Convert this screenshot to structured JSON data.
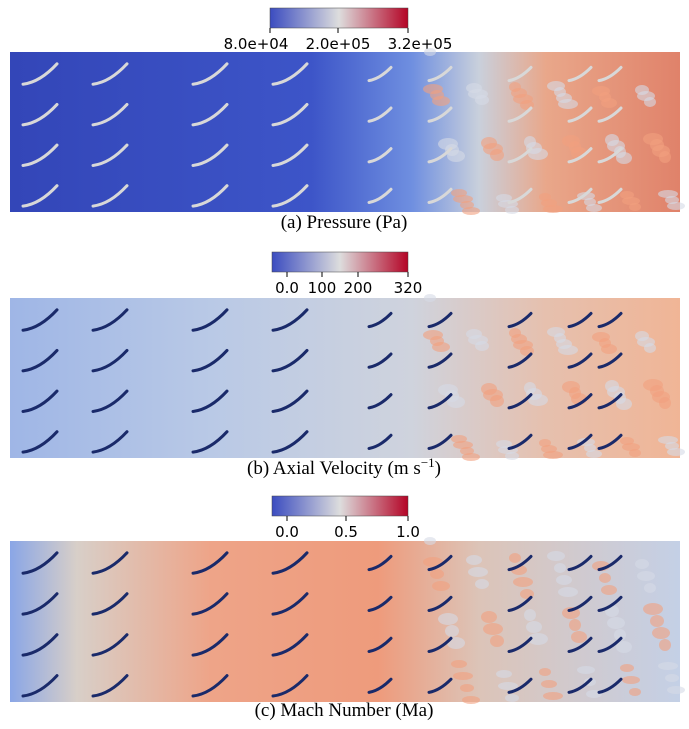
{
  "panels": [
    {
      "colorbar": {
        "ticks": [
          "8.0e+04",
          "2.0e+05",
          "3.2e+05"
        ]
      },
      "caption": {
        "text": "(a) Pressure (Pa)"
      }
    },
    {
      "colorbar": {
        "ticks": [
          "0.0",
          "100",
          "200",
          "320"
        ]
      },
      "caption": {
        "text": "(b) Axial Velocity (m s",
        "sup": "−1",
        "tail": ")"
      }
    },
    {
      "colorbar": {
        "ticks": [
          "0.0",
          "0.5",
          "1.0"
        ]
      },
      "caption": {
        "text": "(c) Mach Number (Ma)"
      }
    }
  ]
}
